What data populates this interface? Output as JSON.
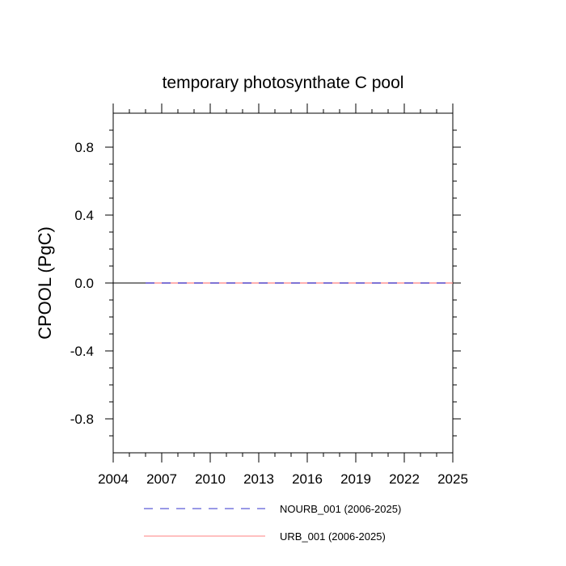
{
  "chart_data": {
    "type": "line",
    "title": "temporary photosynthate C pool",
    "xlabel": "",
    "ylabel": "CPOOL  (PgC)",
    "xlim": [
      2004,
      2025
    ],
    "ylim": [
      -1.0,
      1.0
    ],
    "x_ticks": [
      2004,
      2007,
      2010,
      2013,
      2016,
      2019,
      2022,
      2025
    ],
    "x_tick_labels": [
      "2004",
      "2007",
      "2010",
      "2013",
      "2016",
      "2019",
      "2022",
      "2025"
    ],
    "y_ticks": [
      -0.8,
      -0.4,
      0.0,
      0.4,
      0.8
    ],
    "y_tick_labels": [
      "-0.8",
      "-0.4",
      "0.0",
      "0.4",
      "0.8"
    ],
    "series": [
      {
        "name": "NOURB_001 (2006-2025)",
        "color": "#3333cc",
        "style": "dashed",
        "x": [
          2006,
          2025
        ],
        "values": [
          0.0,
          0.0
        ]
      },
      {
        "name": "URB_001 (2006-2025)",
        "color": "#ff8080",
        "style": "solid",
        "x": [
          2006,
          2025
        ],
        "values": [
          0.0,
          0.0
        ]
      }
    ],
    "legend_position": "bottom",
    "grid": false
  }
}
